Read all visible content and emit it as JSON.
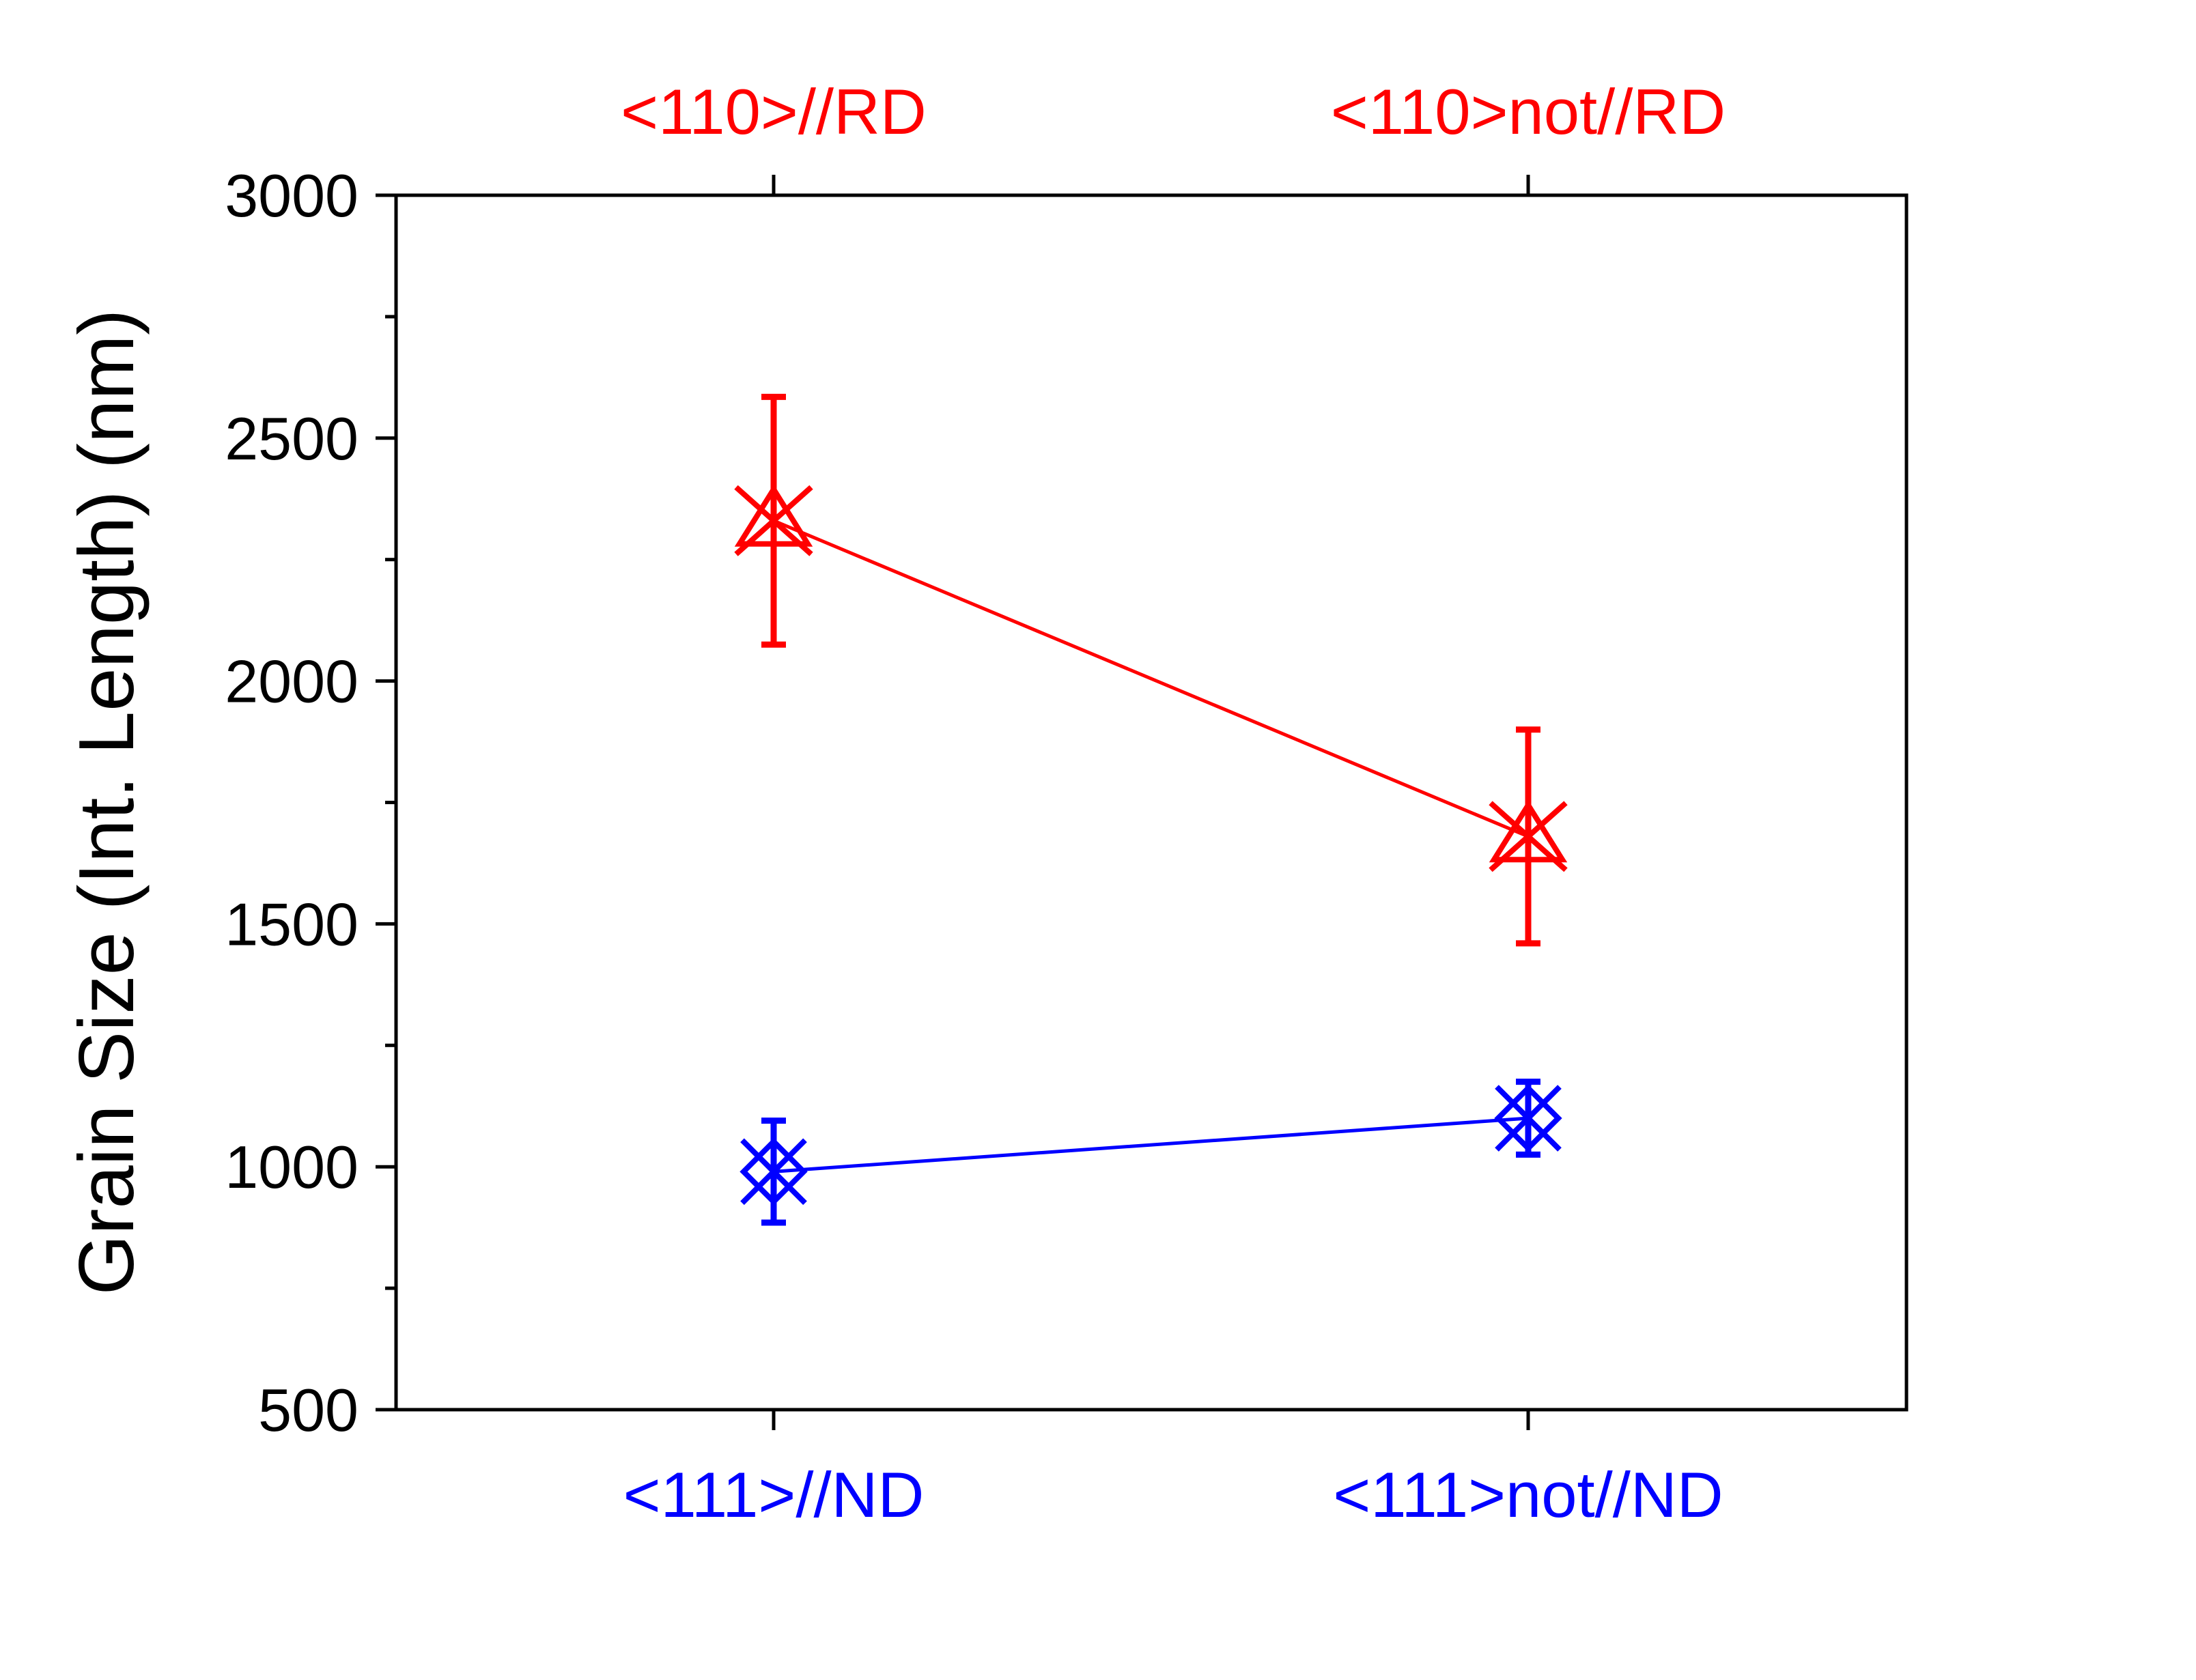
{
  "chart_data": {
    "type": "line",
    "ylabel": "Grain Size (Int. Length) (nm)",
    "ylim": [
      500,
      3000
    ],
    "yticks": [
      500,
      1000,
      1500,
      2000,
      2500,
      3000
    ],
    "y_minor_step": 250,
    "grid": false,
    "series": [
      {
        "categories": [
          "<110>//RD",
          "<110>not//RD"
        ],
        "category_axis": "top",
        "values": [
          2330,
          1680
        ],
        "errors": [
          255,
          220
        ],
        "marker": "triangle-x",
        "color": "#ff0000"
      },
      {
        "categories": [
          "<111>//ND",
          "<111>not//ND"
        ],
        "category_axis": "bottom",
        "values": [
          990,
          1100
        ],
        "errors": [
          105,
          75
        ],
        "marker": "diamond-x",
        "color": "#0000ff"
      }
    ]
  }
}
